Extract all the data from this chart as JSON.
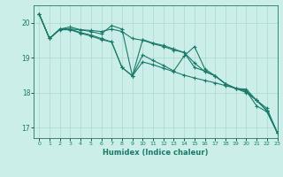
{
  "xlabel": "Humidex (Indice chaleur)",
  "bg_color": "#cceee8",
  "grid_color": "#aad8d0",
  "line_color": "#1a7a6a",
  "xlim": [
    -0.5,
    23
  ],
  "ylim": [
    16.7,
    20.5
  ],
  "yticks": [
    17,
    18,
    19,
    20
  ],
  "xticks": [
    0,
    1,
    2,
    3,
    4,
    5,
    6,
    7,
    8,
    9,
    10,
    11,
    12,
    13,
    14,
    15,
    16,
    17,
    18,
    19,
    20,
    21,
    22,
    23
  ],
  "series1_x": [
    0,
    1,
    2,
    3,
    4,
    5,
    6,
    7,
    8,
    9,
    10,
    11,
    12,
    13,
    14,
    15,
    16,
    17,
    18,
    19,
    20,
    21,
    22,
    23
  ],
  "series1_y": [
    20.25,
    19.55,
    19.82,
    19.82,
    19.8,
    19.78,
    19.75,
    19.82,
    19.75,
    19.55,
    19.5,
    19.4,
    19.32,
    19.22,
    19.15,
    18.85,
    18.6,
    18.48,
    18.25,
    18.12,
    18.1,
    17.78,
    17.55,
    16.85
  ],
  "series2_x": [
    0,
    1,
    2,
    3,
    4,
    5,
    6,
    7,
    8,
    9,
    10,
    11,
    12,
    13,
    14,
    15,
    16,
    17,
    18,
    19,
    20,
    21,
    22,
    23
  ],
  "series2_y": [
    20.25,
    19.55,
    19.82,
    19.82,
    19.72,
    19.65,
    19.55,
    19.45,
    18.72,
    18.48,
    19.08,
    18.92,
    18.78,
    18.62,
    19.05,
    19.32,
    18.68,
    18.48,
    18.25,
    18.12,
    18.05,
    17.78,
    17.48,
    16.85
  ],
  "series3_x": [
    0,
    1,
    2,
    3,
    4,
    5,
    6,
    7,
    8,
    9,
    10,
    11,
    12,
    13,
    14,
    15,
    16,
    17,
    18,
    19,
    20,
    21,
    22,
    23
  ],
  "series3_y": [
    20.25,
    19.55,
    19.82,
    19.88,
    19.8,
    19.75,
    19.68,
    19.92,
    19.82,
    18.48,
    19.52,
    19.42,
    19.35,
    19.25,
    19.15,
    18.72,
    18.62,
    18.48,
    18.25,
    18.12,
    18.05,
    17.62,
    17.45,
    16.85
  ],
  "series4_x": [
    0,
    1,
    2,
    3,
    4,
    5,
    6,
    7,
    8,
    9,
    10,
    11,
    12,
    13,
    14,
    15,
    16,
    17,
    18,
    19,
    20,
    21,
    22,
    23
  ],
  "series4_y": [
    20.25,
    19.55,
    19.8,
    19.8,
    19.7,
    19.62,
    19.52,
    19.45,
    18.72,
    18.48,
    18.88,
    18.8,
    18.7,
    18.6,
    18.5,
    18.42,
    18.35,
    18.28,
    18.2,
    18.12,
    18.0,
    17.78,
    17.48,
    16.85
  ]
}
